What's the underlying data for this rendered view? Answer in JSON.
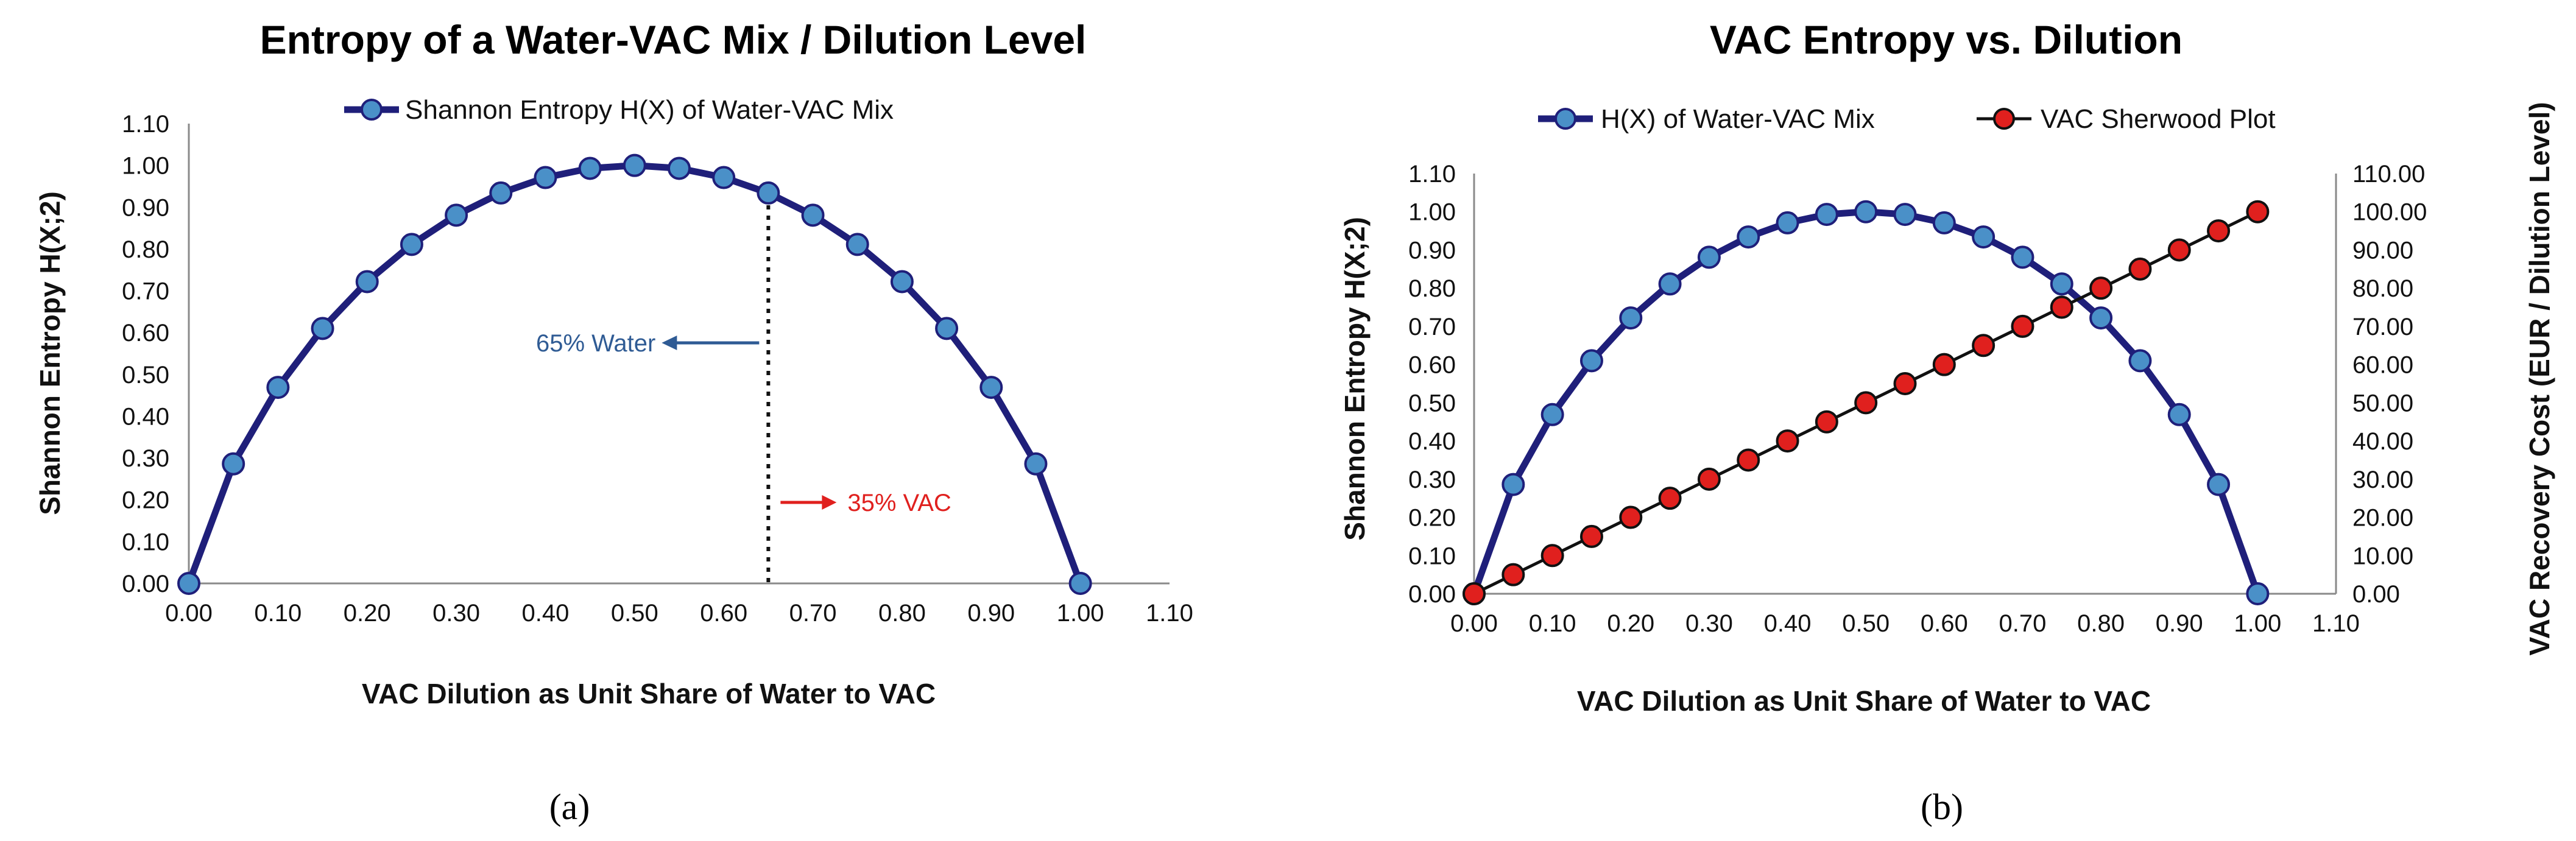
{
  "chart_data": [
    {
      "type": "line",
      "panel_label": "(a)",
      "title": "Entropy of a Water-VAC Mix / Dilution Level",
      "xlabel": "VAC Dilution as Unit Share of Water to VAC",
      "ylabel": "Shannon Entropy H(X;2)",
      "xlim": [
        0,
        1.1
      ],
      "ylim": [
        0,
        1.1
      ],
      "x_ticks": [
        "0.00",
        "0.10",
        "0.20",
        "0.30",
        "0.40",
        "0.50",
        "0.60",
        "0.70",
        "0.80",
        "0.90",
        "1.00",
        "1.10"
      ],
      "y_ticks": [
        "0.00",
        "0.10",
        "0.20",
        "0.30",
        "0.40",
        "0.50",
        "0.60",
        "0.70",
        "0.80",
        "0.90",
        "1.00",
        "1.10"
      ],
      "grid": false,
      "legend_position": "top-center",
      "series": [
        {
          "name": "Shannon Entropy H(X) of Water-VAC Mix",
          "color": "#1f1f7a",
          "marker_color": "#4a90c8",
          "x": [
            0.0,
            0.05,
            0.1,
            0.15,
            0.2,
            0.25,
            0.3,
            0.35,
            0.4,
            0.45,
            0.5,
            0.55,
            0.6,
            0.65,
            0.7,
            0.75,
            0.8,
            0.85,
            0.9,
            0.95,
            1.0
          ],
          "values": [
            0.0,
            0.286,
            0.469,
            0.61,
            0.722,
            0.811,
            0.881,
            0.934,
            0.971,
            0.993,
            1.0,
            0.993,
            0.971,
            0.934,
            0.881,
            0.811,
            0.722,
            0.61,
            0.469,
            0.286,
            0.0
          ]
        }
      ],
      "annotations": {
        "marker_x": 0.65,
        "water_label": "65% Water",
        "water_color": "#2f5b94",
        "vac_label": "35% VAC",
        "vac_color": "#e0201e"
      }
    },
    {
      "type": "line",
      "panel_label": "(b)",
      "title": "VAC Entropy vs. Dilution",
      "xlabel": "VAC Dilution as Unit Share of Water to VAC",
      "ylabel": "Shannon Entropy H(X;2)",
      "y2label": "VAC Recovery Cost (EUR / Dilution Level)",
      "xlim": [
        0,
        1.1
      ],
      "ylim": [
        0,
        1.1
      ],
      "y2lim": [
        0,
        110
      ],
      "x_ticks": [
        "0.00",
        "0.10",
        "0.20",
        "0.30",
        "0.40",
        "0.50",
        "0.60",
        "0.70",
        "0.80",
        "0.90",
        "1.00",
        "1.10"
      ],
      "y_ticks": [
        "0.00",
        "0.10",
        "0.20",
        "0.30",
        "0.40",
        "0.50",
        "0.60",
        "0.70",
        "0.80",
        "0.90",
        "1.00",
        "1.10"
      ],
      "y2_ticks": [
        "0.00",
        "10.00",
        "20.00",
        "30.00",
        "40.00",
        "50.00",
        "60.00",
        "70.00",
        "80.00",
        "90.00",
        "100.00",
        "110.00"
      ],
      "grid": false,
      "legend_position": "top",
      "series": [
        {
          "name": "H(X) of Water-VAC Mix",
          "axis": "left",
          "color": "#1f1f7a",
          "marker_color": "#4a90c8",
          "x": [
            0.0,
            0.05,
            0.1,
            0.15,
            0.2,
            0.25,
            0.3,
            0.35,
            0.4,
            0.45,
            0.5,
            0.55,
            0.6,
            0.65,
            0.7,
            0.75,
            0.8,
            0.85,
            0.9,
            0.95,
            1.0
          ],
          "values": [
            0.0,
            0.286,
            0.469,
            0.61,
            0.722,
            0.811,
            0.881,
            0.934,
            0.971,
            0.993,
            1.0,
            0.993,
            0.971,
            0.934,
            0.881,
            0.811,
            0.722,
            0.61,
            0.469,
            0.286,
            0.0
          ]
        },
        {
          "name": "VAC Sherwood Plot",
          "axis": "right",
          "color": "#111111",
          "marker_color": "#e0201e",
          "x": [
            0.0,
            0.05,
            0.1,
            0.15,
            0.2,
            0.25,
            0.3,
            0.35,
            0.4,
            0.45,
            0.5,
            0.55,
            0.6,
            0.65,
            0.7,
            0.75,
            0.8,
            0.85,
            0.9,
            0.95,
            1.0
          ],
          "values": [
            0,
            5,
            10,
            15,
            20,
            25,
            30,
            35,
            40,
            45,
            50,
            55,
            60,
            65,
            70,
            75,
            80,
            85,
            90,
            95,
            100
          ]
        }
      ]
    }
  ]
}
